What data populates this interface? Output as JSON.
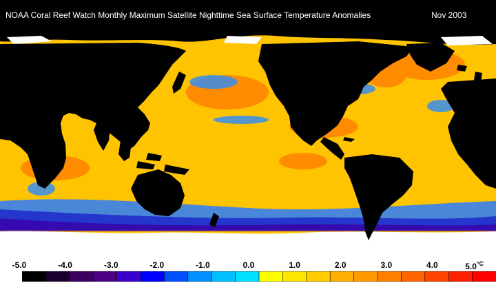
{
  "title": "NOAA Coral Reef Watch Monthly Maximum Satellite Nighttime Sea Surface Temperature Anomalies",
  "date": "Nov 2003",
  "legend": {
    "tick_labels": [
      "-5.0",
      "-4.0",
      "-3.0",
      "-2.0",
      "-1.0",
      "0.0",
      "1.0",
      "2.0",
      "3.0",
      "4.0",
      "5.0"
    ],
    "unit": "°C",
    "colors": [
      "#000000",
      "#1a0030",
      "#3c0060",
      "#4b0082",
      "#3a00cc",
      "#0000ff",
      "#0050ff",
      "#0090ff",
      "#00c0ff",
      "#00e0ff",
      "#ffff00",
      "#ffe600",
      "#ffcc00",
      "#ffb000",
      "#ff9a00",
      "#ff8000",
      "#ff6600",
      "#ff4400",
      "#ff2200",
      "#ff0000"
    ]
  },
  "colors": {
    "land": "#000000",
    "sea_ice": "#ffffff",
    "ocean_main": "#ffc400",
    "warm": "#ff6a00",
    "cool": "#1e8cff",
    "cold": "#1a22c8"
  }
}
